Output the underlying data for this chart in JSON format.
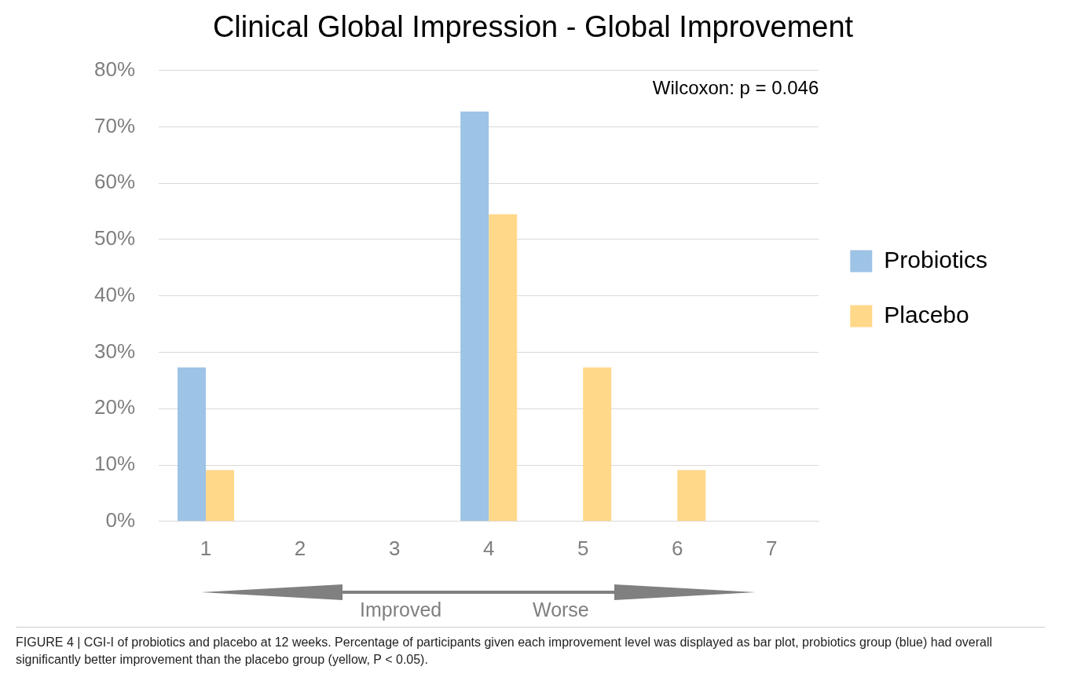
{
  "chart_data": {
    "type": "bar",
    "title": "Clinical Global Impression - Global Improvement",
    "categories": [
      "1",
      "2",
      "3",
      "4",
      "5",
      "6",
      "7"
    ],
    "series": [
      {
        "name": "Probiotics",
        "color": "#9dc3e6",
        "values": [
          27.3,
          0,
          0,
          72.7,
          0,
          0,
          0
        ]
      },
      {
        "name": "Placebo",
        "color": "#ffd88a",
        "values": [
          9.1,
          0,
          0,
          54.5,
          27.3,
          9.1,
          0
        ]
      }
    ],
    "ylim": [
      0,
      80
    ],
    "yticks": [
      {
        "value": 0,
        "label": "0%"
      },
      {
        "value": 10,
        "label": "10%"
      },
      {
        "value": 20,
        "label": "20%"
      },
      {
        "value": 30,
        "label": "30%"
      },
      {
        "value": 40,
        "label": "40%"
      },
      {
        "value": 50,
        "label": "50%"
      },
      {
        "value": 60,
        "label": "60%"
      },
      {
        "value": 70,
        "label": "70%"
      },
      {
        "value": 80,
        "label": "80%"
      }
    ],
    "grid": "y",
    "legend": "right",
    "annotations": [
      "Wilcoxon: p = 0.046",
      "Improved",
      "Worse",
      "FIGURE 4 | CGI-I of probiotics and placebo at 12 weeks. Percentage of participants given each improvement level was displayed as bar plot, probiotics group (blue) had overall significantly better improvement than the placebo group (yellow, P < 0.05)."
    ]
  }
}
